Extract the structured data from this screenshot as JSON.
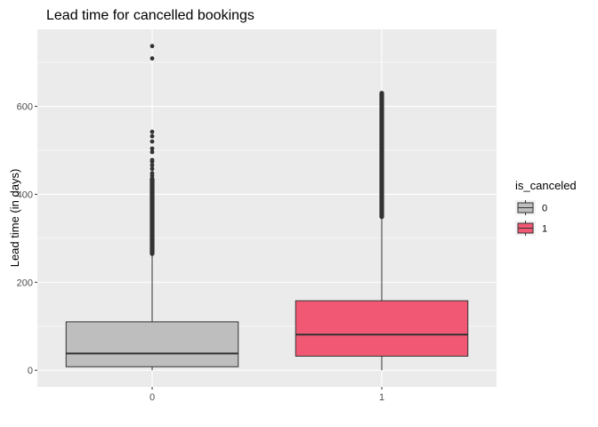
{
  "chart_data": {
    "type": "box",
    "title": "Lead time for cancelled bookings",
    "xlabel": "",
    "ylabel": "Lead time (in days)",
    "categories": [
      "0",
      "1"
    ],
    "ylim": [
      -38,
      775
    ],
    "yticks": [
      0,
      200,
      400,
      600
    ],
    "grid": true,
    "legend": {
      "title": "is_canceled",
      "position": "right",
      "entries": [
        "0",
        "1"
      ]
    },
    "boxes": [
      {
        "category": "0",
        "fill": "#bebebe",
        "whisker_low": 0,
        "q1": 8,
        "median": 38,
        "q3": 110,
        "whisker_high": 262,
        "outlier_range": [
          265,
          435
        ],
        "outliers": [
          442,
          448,
          458,
          466,
          474,
          478,
          496,
          504,
          520,
          532,
          542,
          709,
          737
        ]
      },
      {
        "category": "1",
        "fill": "#f05874",
        "whisker_low": 0,
        "q1": 32,
        "median": 81,
        "q3": 158,
        "whisker_high": 347,
        "outlier_range": [
          349,
          630
        ],
        "outliers": []
      }
    ]
  }
}
